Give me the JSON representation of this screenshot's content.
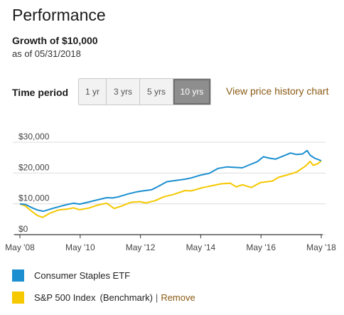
{
  "header": {
    "title": "Performance",
    "growth": "Growth of $10,000",
    "as_of": "as of 05/31/2018"
  },
  "time_period": {
    "label": "Time period",
    "options": [
      "1 yr",
      "3 yrs",
      "5 yrs",
      "10 yrs"
    ],
    "selected": "10 yrs",
    "price_history_link": "View price history chart"
  },
  "legend": {
    "series1": "Consumer Staples ETF",
    "series2_name": "S&P 500 Index",
    "series2_tag": "(Benchmark)",
    "separator": "|",
    "remove_label": "Remove"
  },
  "colors": {
    "series1": "#1b8fd0",
    "series2": "#f5c800",
    "link": "#8a5a14"
  },
  "chart_data": {
    "type": "line",
    "x_ticks": [
      "May '08",
      "May '10",
      "May '12",
      "May '14",
      "May '16",
      "May '18"
    ],
    "y_ticks": [
      "$30,000",
      "$20,000",
      "$10,000",
      "$0"
    ],
    "ylim": [
      0,
      30000
    ],
    "xlim": [
      2008.42,
      2018.42
    ],
    "grid": true,
    "series": [
      {
        "name": "Consumer Staples ETF",
        "points": [
          [
            2008.42,
            10000
          ],
          [
            2008.6,
            9800
          ],
          [
            2008.85,
            8600
          ],
          [
            2009.0,
            8000
          ],
          [
            2009.2,
            7600
          ],
          [
            2009.5,
            8500
          ],
          [
            2009.8,
            9300
          ],
          [
            2010.0,
            9800
          ],
          [
            2010.2,
            10200
          ],
          [
            2010.4,
            9900
          ],
          [
            2010.7,
            10600
          ],
          [
            2011.0,
            11300
          ],
          [
            2011.3,
            12000
          ],
          [
            2011.5,
            11900
          ],
          [
            2011.7,
            12300
          ],
          [
            2012.0,
            13200
          ],
          [
            2012.3,
            13900
          ],
          [
            2012.5,
            14200
          ],
          [
            2012.8,
            14600
          ],
          [
            2013.0,
            15600
          ],
          [
            2013.3,
            17200
          ],
          [
            2013.6,
            17600
          ],
          [
            2013.9,
            18000
          ],
          [
            2014.1,
            18400
          ],
          [
            2014.4,
            19300
          ],
          [
            2014.7,
            19900
          ],
          [
            2015.0,
            21500
          ],
          [
            2015.3,
            22000
          ],
          [
            2015.6,
            21800
          ],
          [
            2015.8,
            21700
          ],
          [
            2016.0,
            22500
          ],
          [
            2016.3,
            23700
          ],
          [
            2016.5,
            25300
          ],
          [
            2016.7,
            24800
          ],
          [
            2016.9,
            24500
          ],
          [
            2017.1,
            25300
          ],
          [
            2017.4,
            26500
          ],
          [
            2017.6,
            26000
          ],
          [
            2017.8,
            26200
          ],
          [
            2017.95,
            27300
          ],
          [
            2018.05,
            25800
          ],
          [
            2018.2,
            24800
          ],
          [
            2018.42,
            24000
          ]
        ]
      },
      {
        "name": "S&P 500 Index",
        "points": [
          [
            2008.42,
            10000
          ],
          [
            2008.6,
            9300
          ],
          [
            2008.85,
            7300
          ],
          [
            2009.0,
            6200
          ],
          [
            2009.17,
            5600
          ],
          [
            2009.4,
            6900
          ],
          [
            2009.7,
            8000
          ],
          [
            2010.0,
            8300
          ],
          [
            2010.2,
            8700
          ],
          [
            2010.4,
            8100
          ],
          [
            2010.7,
            8600
          ],
          [
            2011.0,
            9600
          ],
          [
            2011.3,
            10200
          ],
          [
            2011.55,
            8500
          ],
          [
            2011.8,
            9300
          ],
          [
            2012.1,
            10500
          ],
          [
            2012.4,
            10700
          ],
          [
            2012.6,
            10300
          ],
          [
            2012.9,
            11000
          ],
          [
            2013.2,
            12300
          ],
          [
            2013.5,
            13000
          ],
          [
            2013.9,
            14300
          ],
          [
            2014.1,
            14200
          ],
          [
            2014.5,
            15300
          ],
          [
            2014.8,
            15900
          ],
          [
            2015.1,
            16500
          ],
          [
            2015.4,
            16700
          ],
          [
            2015.6,
            15500
          ],
          [
            2015.8,
            16200
          ],
          [
            2016.1,
            15300
          ],
          [
            2016.4,
            16900
          ],
          [
            2016.8,
            17400
          ],
          [
            2017.0,
            18600
          ],
          [
            2017.3,
            19400
          ],
          [
            2017.6,
            20300
          ],
          [
            2017.9,
            22300
          ],
          [
            2018.05,
            23800
          ],
          [
            2018.15,
            22500
          ],
          [
            2018.3,
            23000
          ],
          [
            2018.42,
            24000
          ]
        ]
      }
    ]
  }
}
